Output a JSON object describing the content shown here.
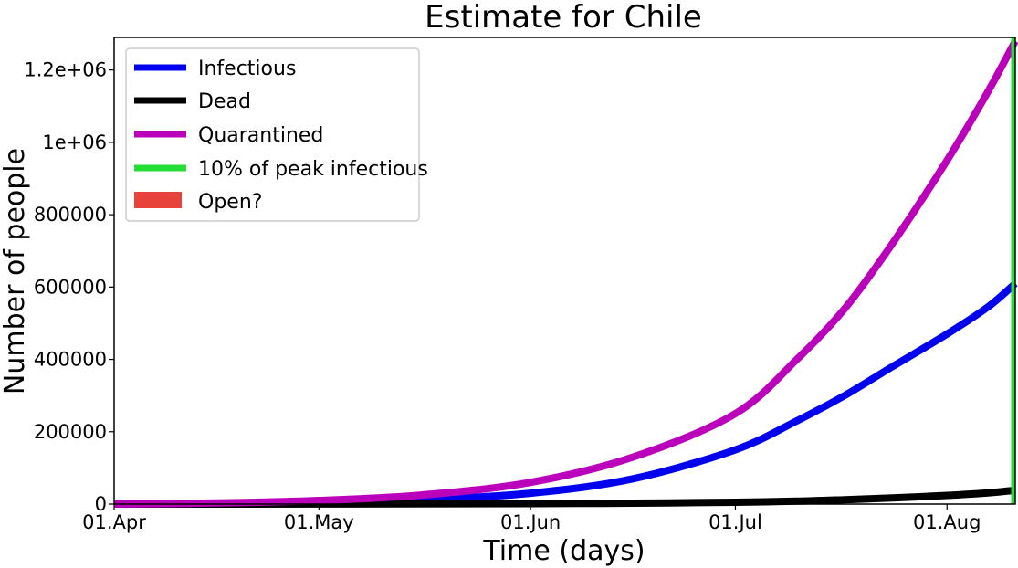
{
  "chart_data": {
    "type": "line",
    "title": "Estimate for Chile",
    "xlabel": "Time (days)",
    "ylabel": "Number of people",
    "x_ticks": [
      "01.Apr",
      "01.May",
      "01.Jun",
      "01.Jul",
      "01.Aug"
    ],
    "x_tick_days": [
      0,
      30,
      61,
      91,
      122
    ],
    "xlim_days": [
      0,
      132
    ],
    "ylim": [
      0,
      1290000
    ],
    "y_ticks": [
      {
        "value": 0,
        "label": "0"
      },
      {
        "value": 200000,
        "label": "200000"
      },
      {
        "value": 400000,
        "label": "400000"
      },
      {
        "value": 600000,
        "label": "600000"
      },
      {
        "value": 800000,
        "label": "800000"
      },
      {
        "value": 1000000,
        "label": "1e+06"
      },
      {
        "value": 1200000,
        "label": "1.2e+06"
      }
    ],
    "grid": false,
    "legend_position": "top-left",
    "series": [
      {
        "name": "Infectious",
        "color": "#0000ee",
        "x_days": [
          0,
          15,
          30,
          45,
          61,
          76,
          91,
          100,
          107,
          114,
          122,
          128,
          132
        ],
        "values": [
          0,
          2000,
          6000,
          12000,
          30000,
          70000,
          150000,
          230000,
          300000,
          380000,
          470000,
          545000,
          610000
        ]
      },
      {
        "name": "Dead",
        "color": "#000000",
        "x_days": [
          0,
          30,
          61,
          76,
          91,
          100,
          107,
          114,
          122,
          128,
          132
        ],
        "values": [
          0,
          200,
          1200,
          2600,
          5000,
          8000,
          12000,
          17000,
          24000,
          31000,
          38000
        ]
      },
      {
        "name": "Quarantined",
        "color": "#bb00bb",
        "x_days": [
          0,
          15,
          30,
          45,
          61,
          76,
          91,
          100,
          107,
          114,
          122,
          128,
          132
        ],
        "values": [
          0,
          3000,
          10000,
          25000,
          60000,
          130000,
          250000,
          400000,
          540000,
          720000,
          950000,
          1140000,
          1280000
        ]
      }
    ],
    "vertical_line": {
      "name": "10% of peak infectious",
      "color": "#22dd33",
      "x_day": 132
    },
    "shaded_region": {
      "name": "Open?",
      "color": "#e8433a"
    }
  }
}
